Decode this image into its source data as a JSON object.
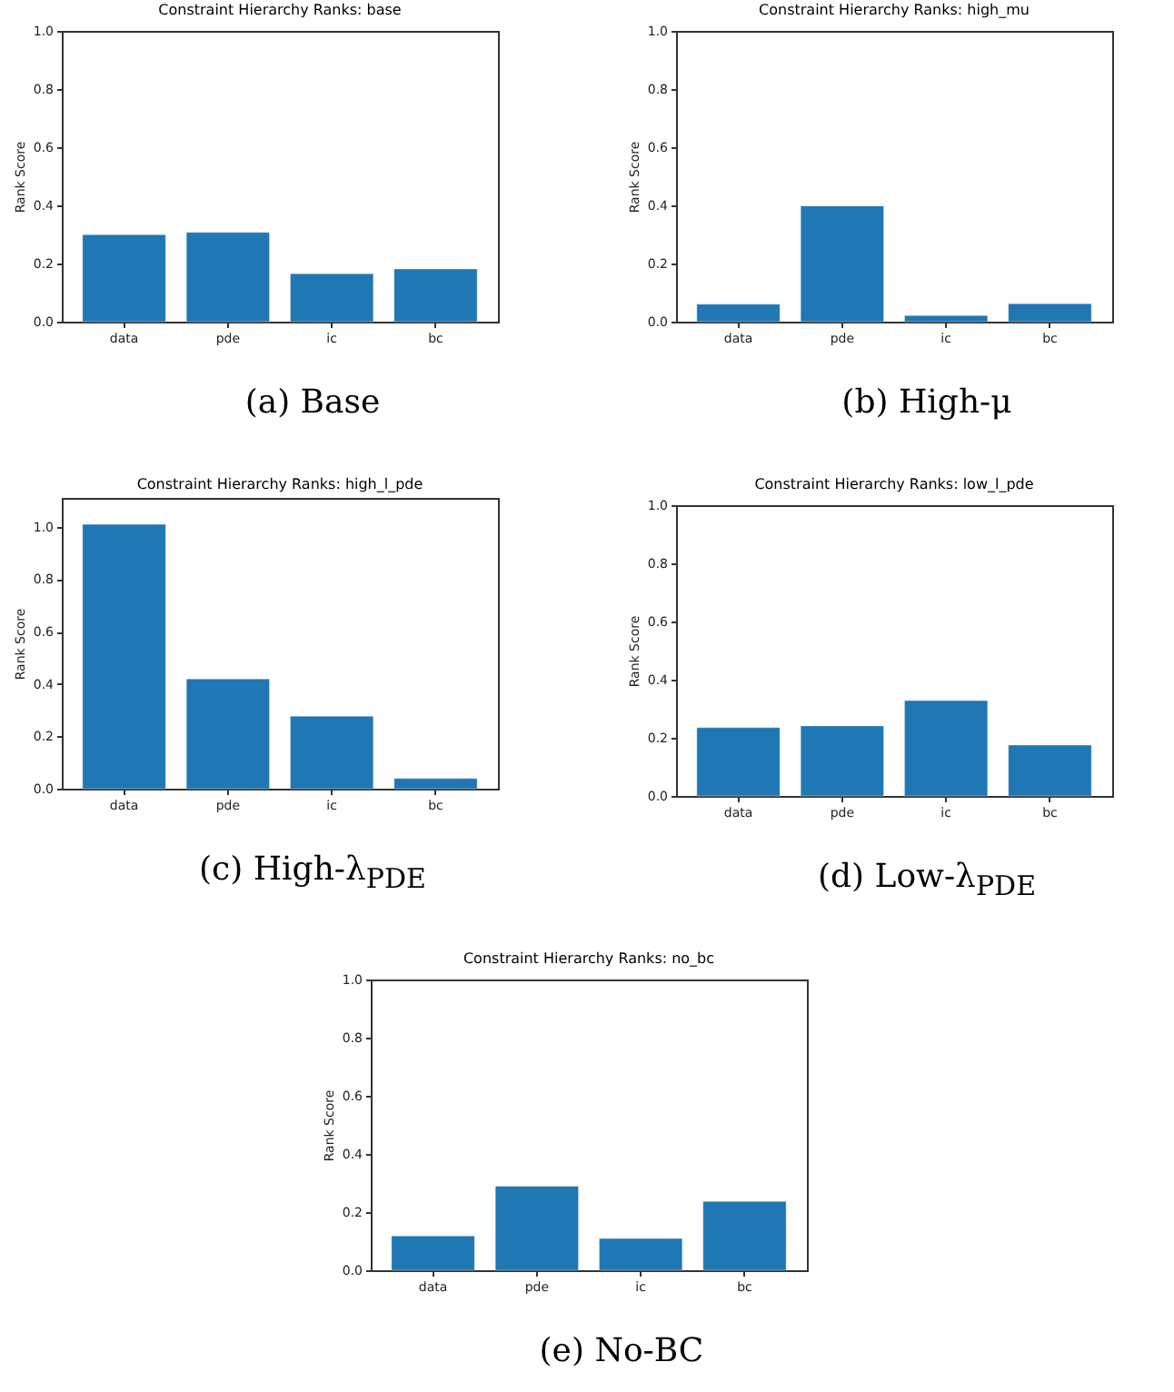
{
  "chart_data": [
    {
      "type": "bar",
      "title": "Constraint Hierarchy Ranks: base",
      "ylabel": "Rank Score",
      "categories": [
        "data",
        "pde",
        "ic",
        "bc"
      ],
      "values": [
        0.299,
        0.307,
        0.165,
        0.181
      ],
      "color": "#1f77b4",
      "ylim": [
        0,
        1.0
      ],
      "yticks": [
        {
          "value": 0,
          "label": "0.0"
        },
        {
          "value": 0.2,
          "label": "0.2"
        },
        {
          "value": 0.4,
          "label": "0.4"
        },
        {
          "value": 0.6,
          "label": "0.6"
        },
        {
          "value": 0.8,
          "label": "0.8"
        },
        {
          "value": 1,
          "label": "1.0"
        }
      ],
      "annotations": [
        "(a) Base"
      ]
    },
    {
      "type": "bar",
      "title": "Constraint Hierarchy Ranks: high_mu",
      "ylabel": "Rank Score",
      "categories": [
        "data",
        "pde",
        "ic",
        "bc"
      ],
      "values": [
        0.06,
        0.398,
        0.021,
        0.062
      ],
      "color": "#1f77b4",
      "ylim": [
        0,
        1.0
      ],
      "yticks": [
        {
          "value": 0,
          "label": "0.0"
        },
        {
          "value": 0.2,
          "label": "0.2"
        },
        {
          "value": 0.4,
          "label": "0.4"
        },
        {
          "value": 0.6,
          "label": "0.6"
        },
        {
          "value": 0.8,
          "label": "0.8"
        },
        {
          "value": 1,
          "label": "1.0"
        }
      ],
      "annotations": [
        "(b) High-μ"
      ]
    },
    {
      "type": "bar",
      "title": "Constraint Hierarchy Ranks: high_l_pde",
      "ylabel": "Rank Score",
      "categories": [
        "data",
        "pde",
        "ic",
        "bc"
      ],
      "values": [
        1.009,
        0.419,
        0.277,
        0.039
      ],
      "color": "#1f77b4",
      "ylim": [
        0,
        1.11
      ],
      "yticks": [
        {
          "value": 0,
          "label": "0.0"
        },
        {
          "value": 0.2,
          "label": "0.2"
        },
        {
          "value": 0.4,
          "label": "0.4"
        },
        {
          "value": 0.6,
          "label": "0.6"
        },
        {
          "value": 0.8,
          "label": "0.8"
        },
        {
          "value": 1,
          "label": "1.0"
        }
      ],
      "annotations": [
        "(c) High-λ$_{PDE}$"
      ]
    },
    {
      "type": "bar",
      "title": "Constraint Hierarchy Ranks: low_l_pde",
      "ylabel": "Rank Score",
      "categories": [
        "data",
        "pde",
        "ic",
        "bc"
      ],
      "values": [
        0.235,
        0.241,
        0.328,
        0.175
      ],
      "color": "#1f77b4",
      "ylim": [
        0,
        1.0
      ],
      "yticks": [
        {
          "value": 0,
          "label": "0.0"
        },
        {
          "value": 0.2,
          "label": "0.2"
        },
        {
          "value": 0.4,
          "label": "0.4"
        },
        {
          "value": 0.6,
          "label": "0.6"
        },
        {
          "value": 0.8,
          "label": "0.8"
        },
        {
          "value": 1,
          "label": "1.0"
        }
      ],
      "annotations": [
        "(d) Low-λ$_{PDE}$"
      ]
    },
    {
      "type": "bar",
      "title": "Constraint Hierarchy Ranks: no_bc",
      "ylabel": "Rank Score",
      "categories": [
        "data",
        "pde",
        "ic",
        "bc"
      ],
      "values": [
        0.118,
        0.289,
        0.109,
        0.237
      ],
      "color": "#1f77b4",
      "ylim": [
        0,
        1.0
      ],
      "yticks": [
        {
          "value": 0,
          "label": "0.0"
        },
        {
          "value": 0.2,
          "label": "0.2"
        },
        {
          "value": 0.4,
          "label": "0.4"
        },
        {
          "value": 0.6,
          "label": "0.6"
        },
        {
          "value": 0.8,
          "label": "0.8"
        },
        {
          "value": 1,
          "label": "1.0"
        }
      ],
      "annotations": [
        "(e) No-BC"
      ]
    }
  ]
}
